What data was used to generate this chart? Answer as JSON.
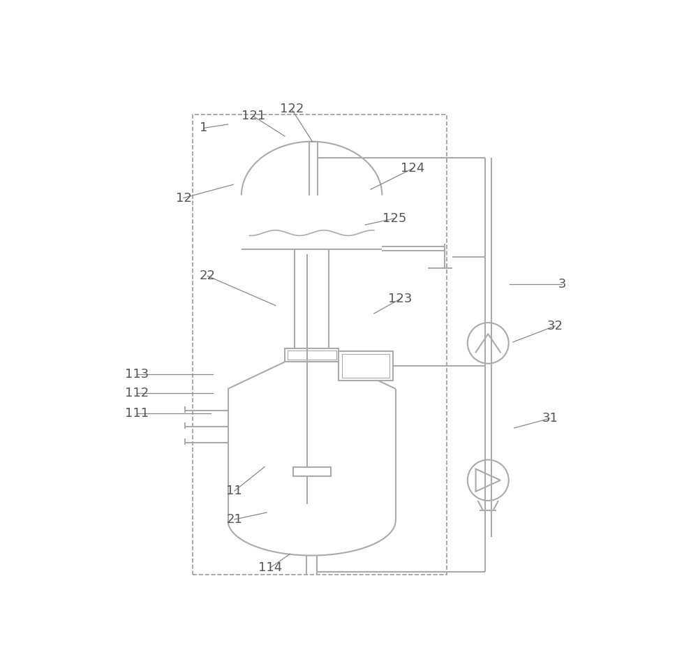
{
  "bg": "#ffffff",
  "lc": "#aaaaaa",
  "lw": 1.5,
  "font_size": 13,
  "label_color": "#555555"
}
